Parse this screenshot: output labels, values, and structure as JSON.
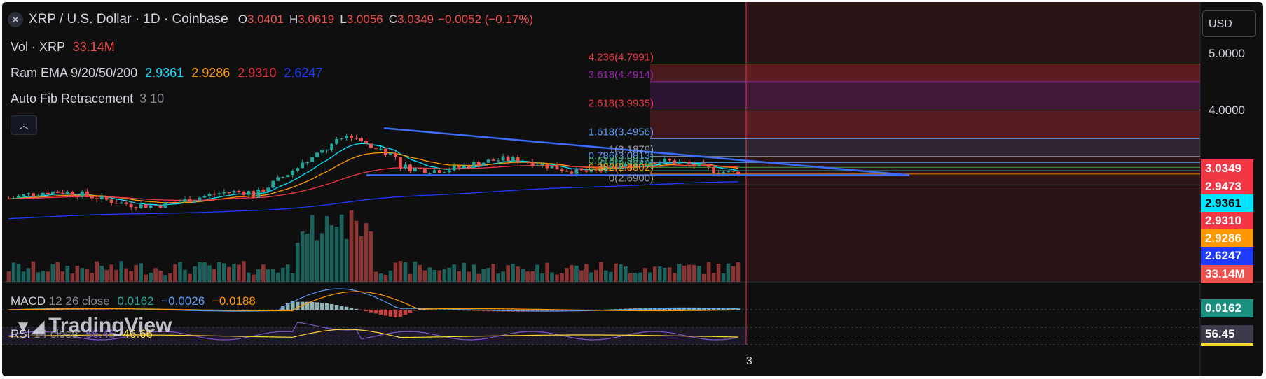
{
  "header": {
    "symbol": "XRP / U.S. Dollar · 1D · Coinbase",
    "o_label": "O",
    "o_value": "3.0401",
    "h_label": "H",
    "h_value": "3.0619",
    "l_label": "L",
    "l_value": "3.0056",
    "c_label": "C",
    "c_value": "3.0349",
    "change": "−0.0052 (−0.17%)"
  },
  "legend": {
    "vol_label": "Vol · XRP",
    "vol_value": "33.14M",
    "ema_label": "Ram EMA 9/20/50/200",
    "ema_values": [
      "2.9361",
      "2.9286",
      "2.9310",
      "2.6247"
    ],
    "fib_label": "Auto Fib Retracement",
    "fib_params": "3 10",
    "collapse_icon": "chevron-up-icon",
    "macd_label": "MACD",
    "macd_params": "12 26 close",
    "macd_values": [
      "0.0162",
      "−0.0026",
      "−0.0188"
    ],
    "rsi_label": "RSI",
    "rsi_params": "14 close",
    "rsi_values": [
      "56.45",
      "46.66"
    ]
  },
  "currency_button": "USD",
  "watermark": "TradingView",
  "time_axis_label": "3",
  "colors": {
    "up": "#26a69a",
    "down": "#ef5350",
    "ema9": "#00e5ff",
    "ema20": "#ff9800",
    "ema50": "#f23645",
    "ema200": "#1e3bff",
    "trendline": "#3d6bff",
    "fib_red": "#f23645",
    "fib_purple": "#9c27b0",
    "fib_blue": "#5b9cf6"
  },
  "chart_data": {
    "type": "candlestick",
    "price_axis": {
      "labels": [
        "5.0000",
        "4.0000"
      ],
      "ticks": [
        5.0,
        4.0
      ]
    },
    "price_tags": [
      {
        "value": "3.0349",
        "color": "#f23645"
      },
      {
        "value": "2.9473",
        "color": "#f23645"
      },
      {
        "value": "2.9361",
        "color": "#00e5ff"
      },
      {
        "value": "2.9310",
        "color": "#f23645"
      },
      {
        "value": "2.9286",
        "color": "#ff9800"
      },
      {
        "value": "2.6247",
        "color": "#1e3bff"
      },
      {
        "value": "33.14M",
        "color": "#ef5350"
      }
    ],
    "fib_levels": [
      {
        "label": "4.236(4.7991)",
        "price": 4.7991,
        "color": "#f23645"
      },
      {
        "label": "3.618(4.4914)",
        "price": 4.4914,
        "color": "#9c27b0"
      },
      {
        "label": "2.618(3.9935)",
        "price": 3.9935,
        "color": "#f23645"
      },
      {
        "label": "1.618(3.4956)",
        "price": 3.4956,
        "color": "#5b9cf6"
      },
      {
        "label": "1(3.1879)",
        "price": 3.1879,
        "color": "#9598a1"
      },
      {
        "label": "0.786(3.0813)",
        "price": 3.0813,
        "color": "#5b9cf6"
      },
      {
        "label": "0.618(2.9977)",
        "price": 2.9977,
        "color": "#4caf50"
      },
      {
        "label": "0.5(2.9389)",
        "price": 2.9389,
        "color": "#26a69a"
      },
      {
        "label": "0.382(2.8802)",
        "price": 2.8802,
        "color": "#ff9800"
      },
      {
        "label": "0(2.6900)",
        "price": 2.69,
        "color": "#9598a1"
      }
    ],
    "macd_tag": {
      "value": "0.0162",
      "color": "#26a69a"
    },
    "rsi_tag": {
      "value": "56.45",
      "color": "#7e57c2"
    },
    "rsi_level_lines": [
      70,
      50,
      30
    ]
  }
}
